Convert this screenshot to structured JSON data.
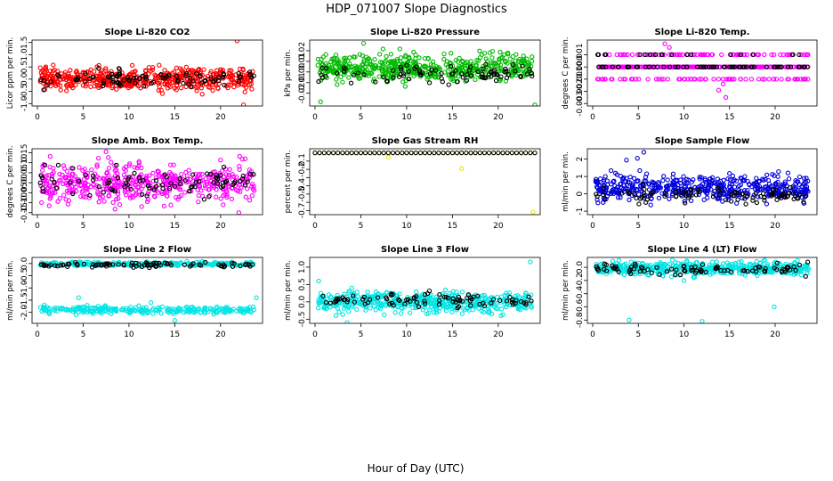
{
  "page": {
    "title": "HDP_071007  Slope Diagnostics",
    "xlabel": "Hour of Day (UTC)"
  },
  "chart_data": [
    {
      "type": "scatter",
      "title": "Slope Li-820 CO2",
      "ylabel": "Licor ppm per min.",
      "xlim": [
        0,
        24
      ],
      "ylim": [
        -1.1,
        1.6
      ],
      "xticks": [
        0,
        5,
        10,
        15,
        20
      ],
      "yticks": [
        -1.0,
        -0.5,
        0.0,
        0.5,
        1.0,
        1.5
      ],
      "ytick_labels": [
        "-1.0",
        "-0.5",
        "0.0",
        "0.5",
        "1.0",
        "1.5"
      ],
      "series": [
        {
          "name": "color series",
          "color": "#ff0000",
          "center": 0.0,
          "spread": 0.28,
          "n": 520,
          "outliers": [
            [
              21.8,
              1.57
            ],
            [
              22.5,
              -1.05
            ]
          ]
        },
        {
          "name": "black series",
          "color": "#000000",
          "center": 0.0,
          "spread": 0.2,
          "n": 90,
          "outliers": []
        }
      ]
    },
    {
      "type": "scatter",
      "title": "Slope Li-820 Pressure",
      "ylabel": "kPa per min.",
      "xlim": [
        0,
        24
      ],
      "ylim": [
        -0.032,
        0.03
      ],
      "xticks": [
        0,
        5,
        10,
        15,
        20
      ],
      "yticks": [
        -0.02,
        -0.01,
        0.0,
        0.01,
        0.02
      ],
      "ytick_labels": [
        "-0.02",
        "-0.01",
        "0.00",
        "0.01",
        "0.02"
      ],
      "series": [
        {
          "name": "color series",
          "color": "#00bb00",
          "center": 0.004,
          "spread": 0.008,
          "n": 520,
          "outliers": [
            [
              5.3,
              0.027
            ],
            [
              24.0,
              -0.031
            ],
            [
              0.6,
              -0.028
            ]
          ]
        },
        {
          "name": "black series",
          "color": "#000000",
          "center": -0.002,
          "spread": 0.005,
          "n": 90,
          "outliers": []
        }
      ]
    },
    {
      "type": "scatter",
      "title": "Slope Li-820 Temp.",
      "ylabel": "degrees C per min.",
      "xlim": [
        0,
        24
      ],
      "ylim": [
        -0.0032,
        0.0022
      ],
      "xticks": [
        0,
        5,
        10,
        15,
        20
      ],
      "yticks": [
        -0.003,
        -0.002,
        -0.001,
        0.0,
        0.001
      ],
      "ytick_labels": [
        "-0.003",
        "-0.002",
        "-0.001",
        "0.000",
        "0.001"
      ],
      "discrete_levels": [
        -0.001,
        0.0,
        0.001
      ],
      "series": [
        {
          "name": "color series",
          "color": "#ff00ff",
          "center": 0.0,
          "spread": 0.001,
          "n": 420,
          "outliers": [
            [
              7.9,
              0.0019
            ],
            [
              14.6,
              -0.0025
            ],
            [
              13.8,
              -0.0019
            ],
            [
              14.3,
              -0.0014
            ],
            [
              8.4,
              0.0016
            ]
          ]
        },
        {
          "name": "black series",
          "color": "#000000",
          "center": 0.0,
          "spread": 0.0006,
          "n": 90,
          "outliers": []
        }
      ]
    },
    {
      "type": "scatter",
      "title": "Slope Amb. Box Temp.",
      "ylabel": "degrees C per min.",
      "xlim": [
        0,
        24
      ],
      "ylim": [
        -0.16,
        0.17
      ],
      "xticks": [
        0,
        5,
        10,
        15,
        20
      ],
      "yticks": [
        -0.15,
        -0.1,
        -0.05,
        0.0,
        0.05,
        0.1,
        0.15
      ],
      "ytick_labels": [
        "-0.15",
        "-0.10",
        "-0.05",
        "0.00",
        "0.05",
        "0.10",
        "0.15"
      ],
      "series": [
        {
          "name": "color series",
          "color": "#ff00ff",
          "center": 0.0,
          "spread": 0.06,
          "n": 480,
          "outliers": [
            [
              7.5,
              0.155
            ],
            [
              22.0,
              -0.15
            ]
          ]
        },
        {
          "name": "black series",
          "color": "#000000",
          "center": 0.0,
          "spread": 0.04,
          "n": 90,
          "outliers": []
        }
      ]
    },
    {
      "type": "scatter",
      "title": "Slope Gas Stream RH",
      "ylabel": "percent per min.",
      "xlim": [
        0,
        24
      ],
      "ylim": [
        -0.75,
        0.05
      ],
      "xticks": [
        0,
        5,
        10,
        15,
        20
      ],
      "yticks": [
        -0.7,
        -0.6,
        -0.5,
        -0.4,
        -0.3,
        -0.2,
        -0.1
      ],
      "ytick_labels": [
        "-0.7",
        "",
        "-0.5",
        "-0.4",
        "",
        "-0.2",
        "-0.1"
      ],
      "series": [
        {
          "name": "color series",
          "color": "#e6e600",
          "center": 0.0,
          "spread": 0.0,
          "n": 0,
          "flat_value": 0.0,
          "outliers": [
            [
              8.0,
              -0.05
            ],
            [
              16.0,
              -0.19
            ],
            [
              23.8,
              -0.72
            ]
          ]
        },
        {
          "name": "black series",
          "color": "#000000",
          "center": 0.0,
          "spread": 0.0,
          "n": 0,
          "flat_value": 0.0,
          "outliers": []
        }
      ]
    },
    {
      "type": "scatter",
      "title": "Slope Sample Flow",
      "ylabel": "ml/min per min.",
      "xlim": [
        0,
        24
      ],
      "ylim": [
        -1.2,
        2.6
      ],
      "xticks": [
        0,
        5,
        10,
        15,
        20
      ],
      "yticks": [
        -1,
        0,
        1,
        2
      ],
      "ytick_labels": [
        "-1",
        "0",
        "1",
        "2"
      ],
      "series": [
        {
          "name": "color series",
          "color": "#0000dd",
          "center": 0.35,
          "spread": 0.45,
          "n": 480,
          "outliers": [
            [
              5.6,
              2.4
            ],
            [
              4.9,
              2.05
            ],
            [
              3.7,
              1.95
            ]
          ]
        },
        {
          "name": "black series",
          "color": "#000000",
          "center": -0.1,
          "spread": 0.3,
          "n": 90,
          "outliers": []
        }
      ]
    },
    {
      "type": "scatter",
      "title": "Slope Line 2 Flow",
      "ylabel": "ml/min per min.",
      "xlim": [
        0,
        24
      ],
      "ylim": [
        -2.45,
        0.25
      ],
      "xticks": [
        0,
        5,
        10,
        15,
        20
      ],
      "yticks": [
        -2.0,
        -1.5,
        -1.0,
        -0.5,
        0.0
      ],
      "ytick_labels": [
        "-2.0",
        "-1.5",
        "-1.0",
        "-0.5",
        "0.0"
      ],
      "series": [
        {
          "name": "color series (upper band)",
          "color": "#00e5e5",
          "center": -0.02,
          "spread": 0.05,
          "n": 260,
          "outliers": []
        },
        {
          "name": "color series (lower band)",
          "color": "#00e5e5",
          "center": -1.9,
          "spread": 0.09,
          "n": 260,
          "outliers": [
            [
              4.5,
              -1.4
            ],
            [
              15.0,
              -2.33
            ],
            [
              23.9,
              -1.4
            ],
            [
              12.4,
              -1.6
            ]
          ]
        },
        {
          "name": "black series",
          "color": "#000000",
          "center": -0.05,
          "spread": 0.06,
          "n": 90,
          "outliers": []
        }
      ]
    },
    {
      "type": "scatter",
      "title": "Slope Line 3 Flow",
      "ylabel": "ml/min per min.",
      "xlim": [
        0,
        24
      ],
      "ylim": [
        -0.62,
        1.28
      ],
      "xticks": [
        0,
        5,
        10,
        15,
        20
      ],
      "yticks": [
        -0.5,
        0.0,
        0.5,
        1.0
      ],
      "ytick_labels": [
        "-0.5",
        "0.0",
        "0.5",
        "1.0"
      ],
      "series": [
        {
          "name": "color series",
          "color": "#00e5e5",
          "center": 0.0,
          "spread": 0.18,
          "n": 480,
          "outliers": [
            [
              0.4,
              0.6
            ],
            [
              3.5,
              -0.6
            ],
            [
              23.5,
              1.15
            ],
            [
              20.3,
              -0.4
            ]
          ]
        },
        {
          "name": "black series",
          "color": "#000000",
          "center": 0.05,
          "spread": 0.12,
          "n": 90,
          "outliers": []
        }
      ]
    },
    {
      "type": "scatter",
      "title": "Slope Line 4 (LT) Flow",
      "ylabel": "ml/min per min.",
      "xlim": [
        0,
        24
      ],
      "ylim": [
        -0.85,
        0.15
      ],
      "xticks": [
        0,
        5,
        10,
        15,
        20
      ],
      "yticks": [
        -0.8,
        -0.6,
        -0.4,
        -0.2,
        0.0
      ],
      "ytick_labels": [
        "-0.8",
        "-0.6",
        "-0.4",
        "-0.2",
        "0.0"
      ],
      "series": [
        {
          "name": "color series",
          "color": "#00e5e5",
          "center": -0.02,
          "spread": 0.06,
          "n": 480,
          "outliers": [
            [
              4.0,
              -0.8
            ],
            [
              12.0,
              -0.82
            ],
            [
              19.9,
              -0.6
            ],
            [
              10.0,
              -0.2
            ]
          ]
        },
        {
          "name": "black series",
          "color": "#000000",
          "center": -0.03,
          "spread": 0.05,
          "n": 90,
          "outliers": []
        }
      ]
    }
  ]
}
